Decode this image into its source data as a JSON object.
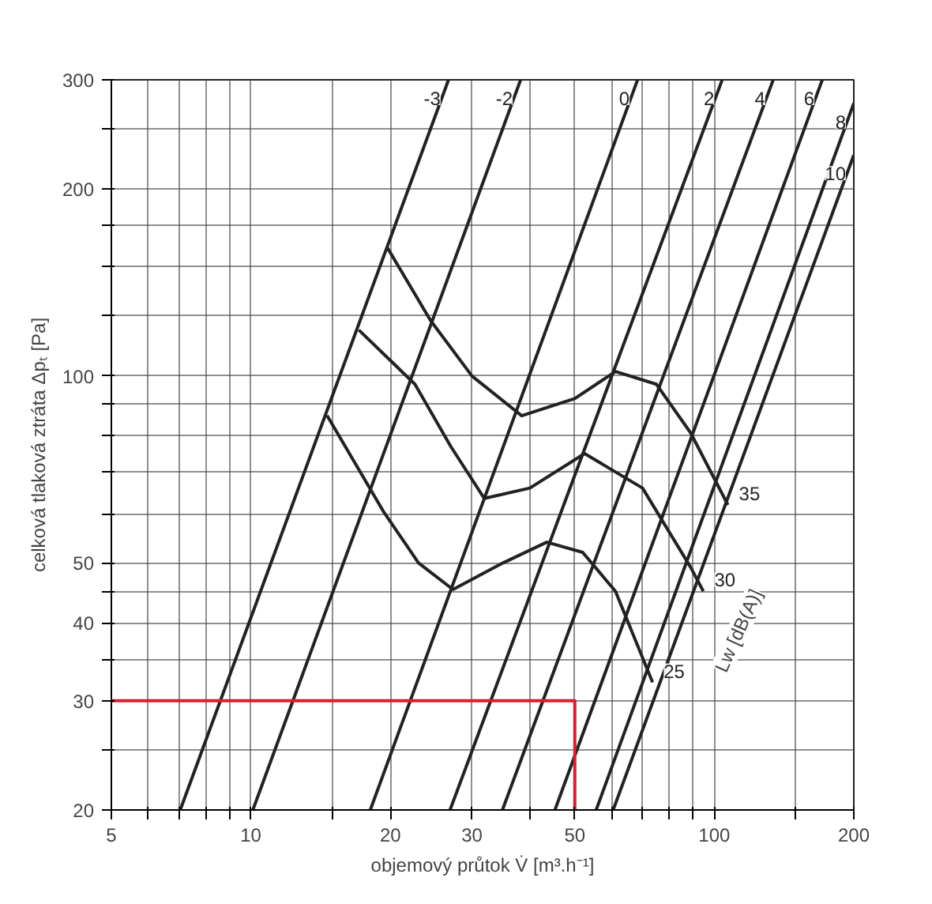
{
  "chart_data": {
    "type": "line",
    "xlabel": "objemový průtok V̇ [m³.h⁻¹]",
    "ylabel": "celková tlaková ztráta Δpₜ [Pa]",
    "log": "xy",
    "xlim": [
      5,
      200
    ],
    "ylim": [
      20,
      300
    ],
    "xticks": [
      5,
      {
        "value": 6,
        "label": null
      },
      {
        "value": 7,
        "label": null
      },
      {
        "value": 8,
        "label": null
      },
      {
        "value": 9,
        "label": null
      },
      10,
      {
        "value": 15,
        "label": null
      },
      20,
      30,
      {
        "value": 40,
        "label": null
      },
      50,
      {
        "value": 60,
        "label": null
      },
      {
        "value": 70,
        "label": null
      },
      {
        "value": 80,
        "label": null
      },
      {
        "value": 90,
        "label": null
      },
      100,
      {
        "value": 150,
        "label": null
      },
      200
    ],
    "yticks": [
      20,
      {
        "value": 25,
        "label": null
      },
      30,
      {
        "value": 35,
        "label": null
      },
      40,
      {
        "value": 45,
        "label": null
      },
      50,
      {
        "value": 60,
        "label": null
      },
      {
        "value": 70,
        "label": null
      },
      {
        "value": 80,
        "label": null
      },
      {
        "value": 90,
        "label": null
      },
      100,
      {
        "value": 125,
        "label": null
      },
      {
        "value": 150,
        "label": null
      },
      {
        "value": 175,
        "label": null
      },
      200,
      {
        "value": 250,
        "label": null
      },
      300
    ],
    "grid": true,
    "series": [
      {
        "name": "-3",
        "color": "#222222",
        "x": [
          7.04,
          26.7
        ],
        "values": [
          20,
          300
        ]
      },
      {
        "name": "-2",
        "color": "#222222",
        "x": [
          10.1,
          38.2
        ],
        "values": [
          20,
          300
        ]
      },
      {
        "name": "0",
        "color": "#222222",
        "x": [
          18.1,
          68.3
        ],
        "values": [
          20,
          300
        ]
      },
      {
        "name": "2",
        "color": "#222222",
        "x": [
          26.9,
          104
        ],
        "values": [
          20,
          300
        ]
      },
      {
        "name": "4",
        "color": "#222222",
        "x": [
          34.9,
          134
        ],
        "values": [
          20,
          300
        ]
      },
      {
        "name": "6",
        "color": "#222222",
        "x": [
          45.3,
          171
        ],
        "values": [
          20,
          300
        ]
      },
      {
        "name": "8",
        "color": "#222222",
        "x": [
          55.6,
          200
        ],
        "values": [
          20,
          275
        ]
      },
      {
        "name": "10",
        "color": "#222222",
        "x": [
          60.5,
          200
        ],
        "values": [
          20,
          227
        ]
      },
      {
        "name": "35",
        "color": "#222222",
        "x": [
          19.7,
          24.4,
          30,
          38.4,
          50,
          61.2,
          75,
          88.9,
          107
        ],
        "values": [
          161,
          123,
          100,
          86.3,
          92,
          101.7,
          97,
          81,
          62
        ]
      },
      {
        "name": "30",
        "color": "#222222",
        "x": [
          17.1,
          22.6,
          27,
          31.9,
          40,
          52.5,
          70,
          88.9,
          94.7
        ],
        "values": [
          118.6,
          97,
          77,
          63.5,
          66,
          75,
          66,
          49.2,
          45
        ]
      },
      {
        "name": "25",
        "color": "#222222",
        "x": [
          14.6,
          19.3,
          23,
          27.3,
          35,
          43.5,
          52,
          61.2,
          73.6
        ],
        "values": [
          86.4,
          60.6,
          50,
          45.3,
          50,
          54,
          52,
          45,
          32.1
        ]
      },
      {
        "color": "#d42030",
        "x": [
          5,
          50,
          50
        ],
        "values": [
          30,
          30,
          20
        ]
      }
    ],
    "annotations": [
      "Lw [dB(A)]"
    ]
  }
}
